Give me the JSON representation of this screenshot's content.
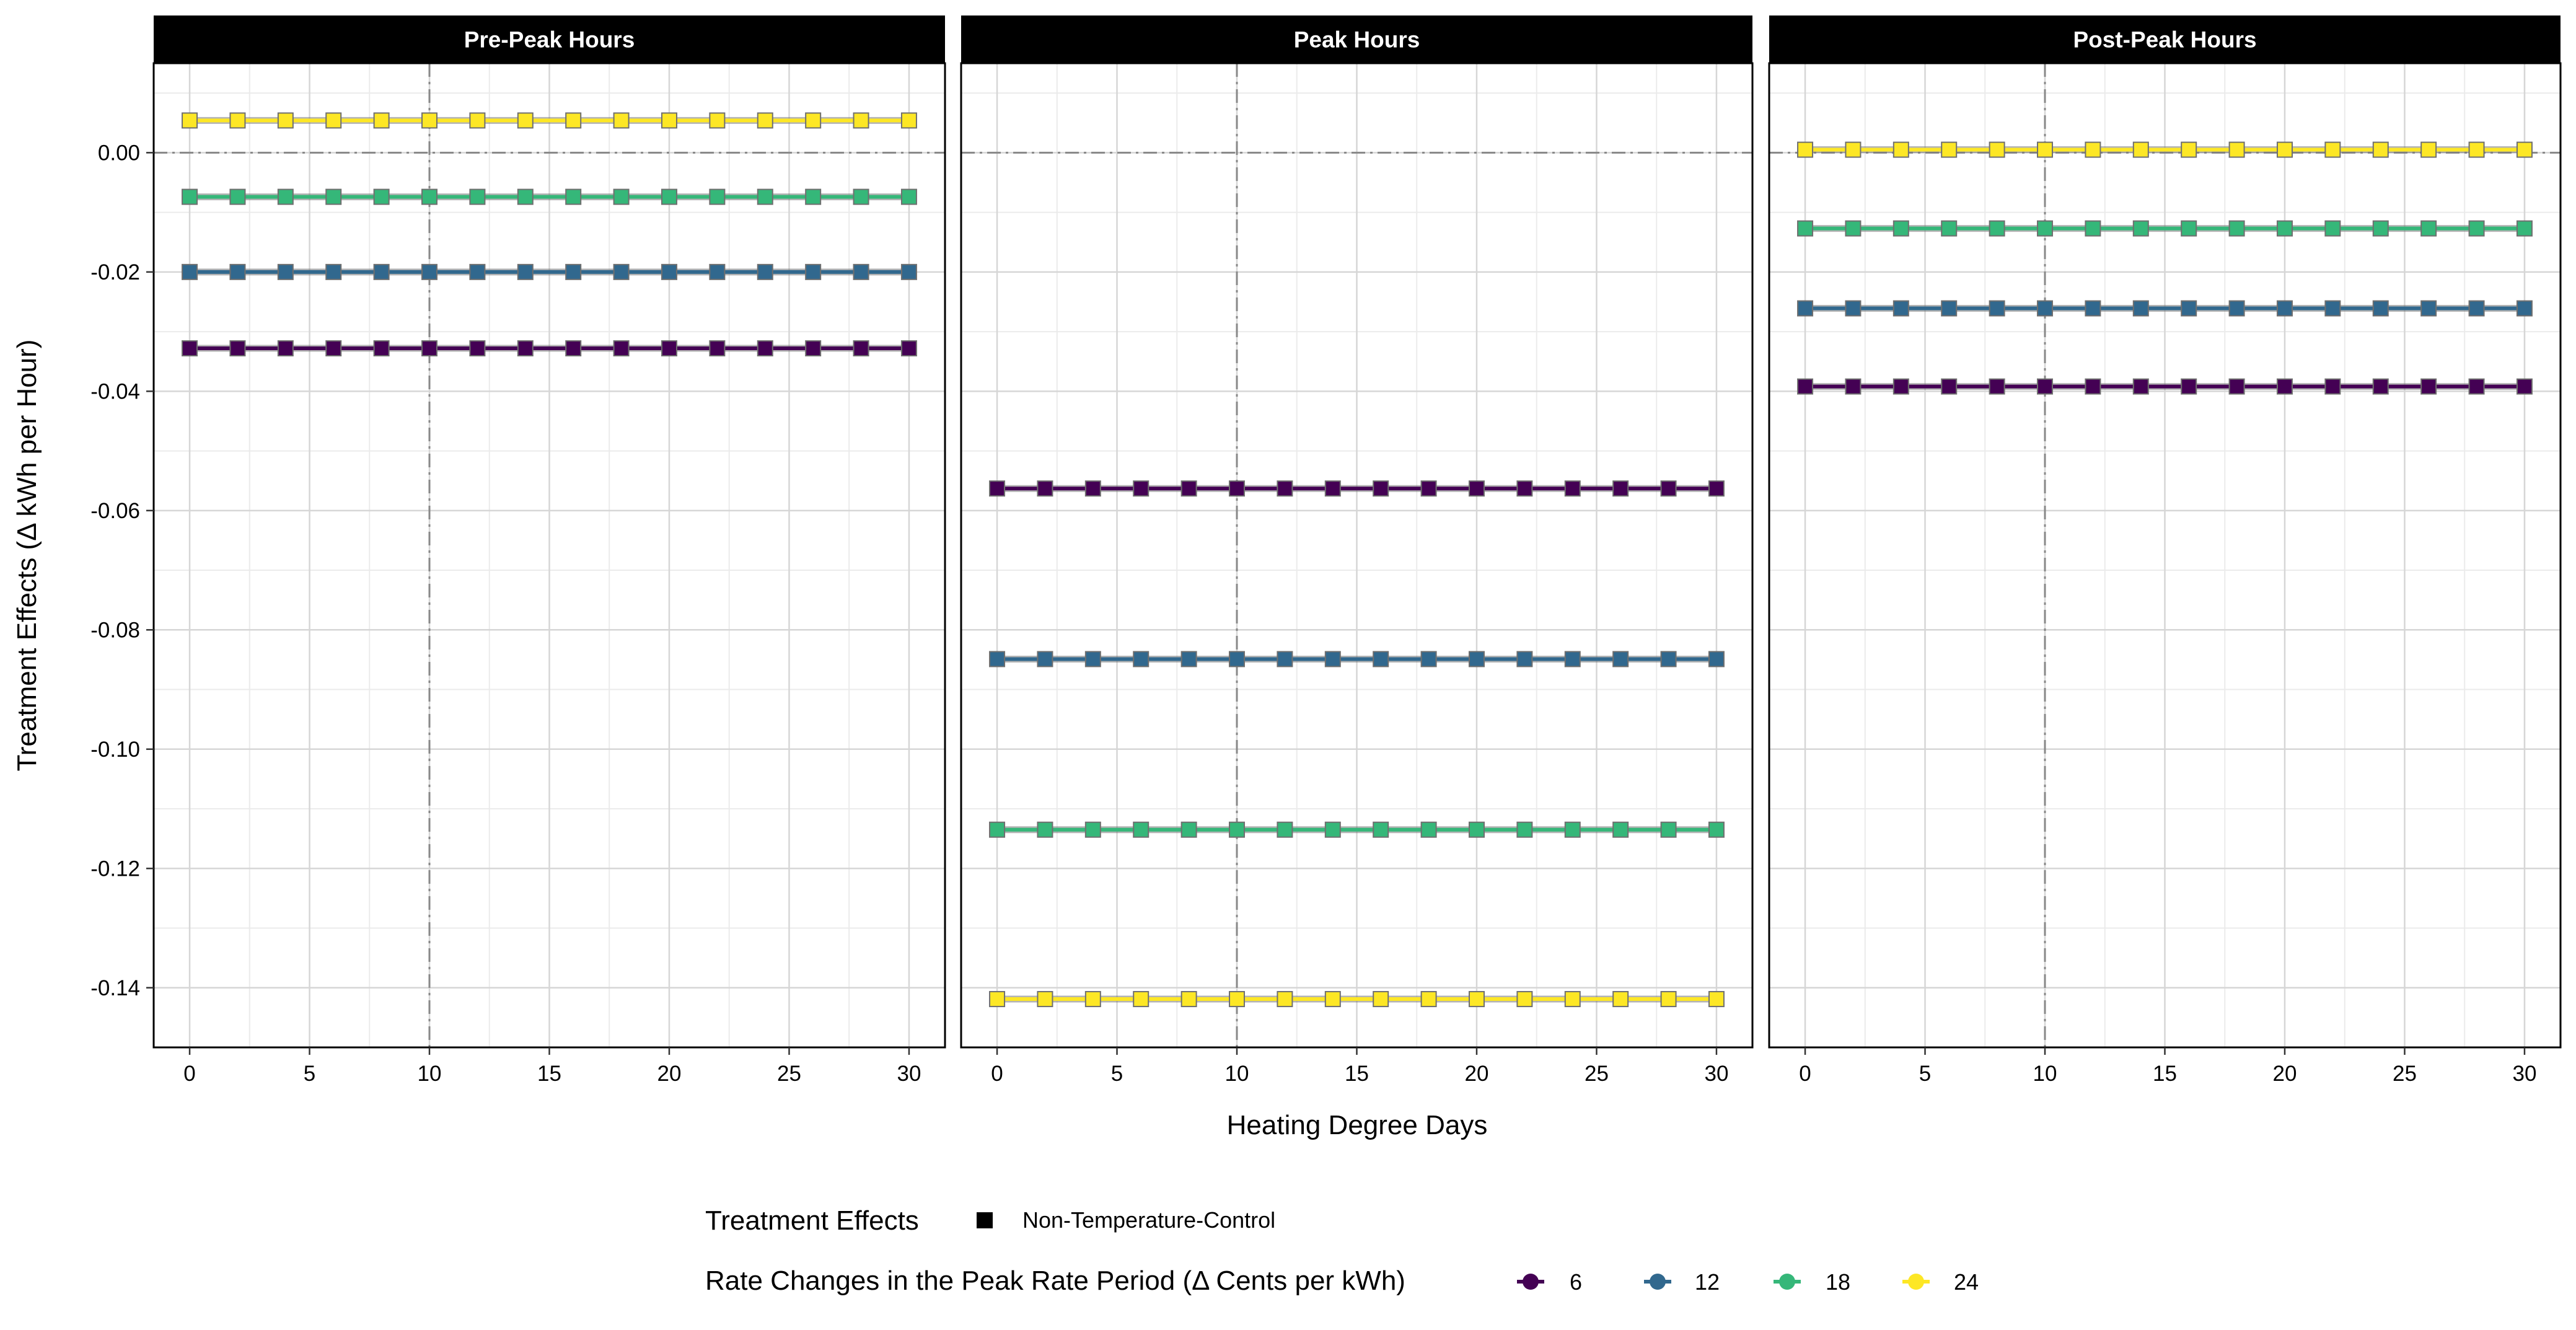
{
  "chart_data": {
    "type": "line",
    "panels": [
      "Pre-Peak Hours",
      "Peak Hours",
      "Post-Peak Hours"
    ],
    "xlabel": "Heating Degree Days",
    "ylabel": "Treatment Effects (Δ kWh per Hour)",
    "xlim": [
      0,
      30
    ],
    "ylim": [
      -0.15,
      0.015
    ],
    "x_ticks": [
      0,
      5,
      10,
      15,
      20,
      25,
      30
    ],
    "y_ticks": [
      0.0,
      -0.02,
      -0.04,
      -0.06,
      -0.08,
      -0.1,
      -0.12,
      -0.14
    ],
    "y_tick_labels": [
      "0.00",
      "-0.02",
      "-0.04",
      "-0.06",
      "-0.08",
      "-0.10",
      "-0.12",
      "-0.14"
    ],
    "x": [
      0,
      2,
      4,
      6,
      8,
      10,
      12,
      14,
      16,
      18,
      20,
      22,
      24,
      26,
      28,
      30
    ],
    "reference_lines": {
      "hline_y": 0,
      "vline_x": 10
    },
    "grid": true,
    "series": [
      {
        "name": "6",
        "color": "#440154",
        "panel_values": [
          -0.0328,
          -0.0563,
          -0.0392
        ]
      },
      {
        "name": "12",
        "color": "#31688E",
        "panel_values": [
          -0.02,
          -0.0849,
          -0.0261
        ]
      },
      {
        "name": "18",
        "color": "#35B779",
        "panel_values": [
          -0.0074,
          -0.1135,
          -0.0127
        ]
      },
      {
        "name": "24",
        "color": "#FDE725",
        "panel_values": [
          0.0054,
          -0.1419,
          0.0005
        ]
      }
    ],
    "legend": {
      "placement": "bottom",
      "shape_title": "Treatment Effects",
      "shape_label": "Non-Temperature-Control",
      "color_title": "Rate Changes in the Peak Rate Period  (Δ Cents per kWh)",
      "color_labels": [
        "6",
        "12",
        "18",
        "24"
      ]
    }
  }
}
